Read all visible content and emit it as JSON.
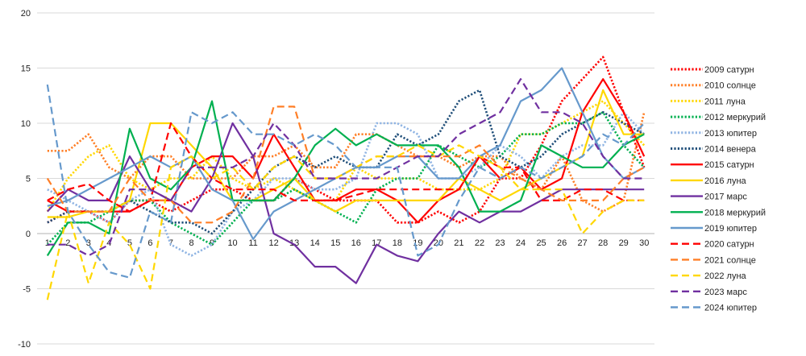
{
  "chart_data": {
    "type": "line",
    "title": "",
    "xlabel": "",
    "ylabel": "",
    "ylim": [
      -10,
      20
    ],
    "yticks": [
      -10,
      -5,
      0,
      5,
      10,
      15,
      20
    ],
    "x": [
      1,
      2,
      3,
      4,
      5,
      6,
      7,
      8,
      9,
      10,
      11,
      12,
      13,
      14,
      15,
      16,
      17,
      18,
      19,
      20,
      21,
      22,
      23,
      24,
      25,
      26,
      27,
      28,
      29,
      30
    ],
    "grid": "horizontal",
    "legend": "right",
    "series": [
      {
        "name": "2009 сатурн",
        "color": "#ff0000",
        "dash": "dot",
        "values": [
          1,
          2,
          2,
          1,
          3,
          3,
          2,
          3,
          4,
          4,
          3,
          3,
          5,
          4,
          3,
          3,
          3,
          1,
          1,
          2,
          1,
          2,
          5,
          5,
          8,
          12,
          14,
          16,
          11,
          6
        ]
      },
      {
        "name": "2010 солнце",
        "color": "#ff7f27",
        "dash": "dot",
        "values": [
          7.5,
          7.5,
          9,
          6,
          5,
          7,
          7,
          5,
          5,
          5,
          7,
          7,
          8,
          6,
          6,
          9,
          9,
          8,
          7,
          7,
          6,
          7,
          7,
          5,
          4,
          7,
          3,
          2,
          3,
          11
        ]
      },
      {
        "name": "2011 луна",
        "color": "#ffd700",
        "dash": "dot",
        "values": [
          2,
          5,
          7,
          8,
          5,
          4,
          5,
          5,
          7,
          5,
          4,
          5,
          4,
          3,
          3,
          6,
          5,
          5,
          5,
          4,
          4,
          4,
          5,
          9,
          9,
          10,
          11,
          12,
          10,
          8
        ]
      },
      {
        "name": "2012 меркурий",
        "color": "#00b050",
        "dash": "dot",
        "values": [
          -1,
          1,
          1,
          2,
          3,
          3,
          1,
          0,
          -1,
          1,
          3,
          3,
          4,
          3,
          2,
          1,
          4,
          5,
          5,
          8,
          7,
          6,
          7,
          9,
          9,
          10,
          10,
          11,
          8,
          6
        ]
      },
      {
        "name": "2013 юпитер",
        "color": "#8fb4e3",
        "dash": "dot",
        "values": [
          4,
          3,
          2,
          1,
          3,
          4,
          -1,
          -2,
          -1,
          2,
          3,
          5,
          5,
          4,
          4,
          5,
          10,
          10,
          9,
          5,
          5,
          6,
          8,
          7,
          5,
          7,
          8,
          8,
          11,
          9
        ]
      },
      {
        "name": "2014 венера",
        "color": "#1f4e79",
        "dash": "dot",
        "values": [
          1,
          2,
          2,
          2,
          3,
          2,
          1,
          1,
          0,
          2,
          4,
          6,
          7,
          6,
          7,
          6,
          6,
          9,
          8,
          9,
          12,
          13,
          7,
          6,
          7,
          9,
          10,
          11,
          10,
          9
        ]
      },
      {
        "name": "2015 сатурн",
        "color": "#ff0000",
        "dash": "solid",
        "values": [
          3,
          2,
          2,
          2,
          2,
          3,
          3,
          6,
          7,
          7,
          5,
          9,
          6,
          3,
          3,
          4,
          4,
          3,
          1,
          3,
          4,
          7,
          5,
          6,
          4,
          5,
          11,
          14,
          11,
          7
        ]
      },
      {
        "name": "2016 луна",
        "color": "#ffd700",
        "dash": "solid",
        "values": [
          1.5,
          1.5,
          2,
          2,
          3,
          10,
          10,
          8,
          6,
          3,
          3,
          4,
          5,
          3,
          2,
          3,
          3,
          3,
          3,
          3,
          5,
          4,
          3,
          4,
          5,
          6,
          7,
          13,
          9,
          9
        ]
      },
      {
        "name": "2017 марс",
        "color": "#7030a0",
        "dash": "solid",
        "values": [
          2,
          4,
          3,
          3,
          7,
          4,
          3,
          2,
          5,
          10,
          7,
          0,
          -1,
          -3,
          -3,
          -4.5,
          -1,
          -2,
          -2.5,
          0,
          2,
          1,
          2,
          2,
          3,
          4,
          4,
          4,
          4,
          4
        ]
      },
      {
        "name": "2018 меркурий",
        "color": "#00b050",
        "dash": "solid",
        "values": [
          -2,
          1,
          1,
          0,
          9.5,
          5,
          4,
          6,
          12,
          3,
          3,
          3,
          5,
          8,
          9.5,
          8,
          9,
          8,
          8,
          8,
          6,
          2,
          2,
          3,
          8,
          7,
          6,
          6,
          8,
          9
        ]
      },
      {
        "name": "2019 юпитер",
        "color": "#6699cc",
        "dash": "solid",
        "values": [
          2.5,
          3,
          4,
          5,
          6,
          7,
          6,
          7,
          4,
          3,
          -0.5,
          2,
          3,
          4,
          5,
          6,
          6,
          7,
          7,
          5,
          5,
          7,
          8,
          12,
          13,
          15,
          11,
          7,
          5,
          6
        ]
      },
      {
        "name": "2020 сатурн",
        "color": "#ff0000",
        "dash": "dash",
        "values": [
          3,
          4,
          4.5,
          3,
          2,
          3,
          10,
          7,
          5,
          4,
          4,
          4,
          3,
          3,
          3,
          3.5,
          4,
          4,
          4,
          4,
          4,
          7,
          6,
          6,
          3,
          3,
          4,
          4,
          3,
          3
        ]
      },
      {
        "name": "2021 солнце",
        "color": "#ff7f27",
        "dash": "dash",
        "values": [
          5,
          2,
          2,
          2,
          5,
          3,
          3,
          1,
          1,
          2,
          5,
          11.5,
          11.5,
          5,
          5,
          6,
          7,
          7,
          7,
          7,
          7,
          8,
          6,
          5,
          4,
          3,
          3,
          3,
          5,
          6
        ]
      },
      {
        "name": "2022 луна",
        "color": "#ffd700",
        "dash": "dash",
        "values": [
          -6,
          2,
          -4.5,
          1,
          -1,
          -5,
          6,
          7,
          5,
          6,
          4,
          6,
          7,
          5,
          5,
          6,
          7,
          7,
          8,
          7,
          8,
          7,
          6,
          4,
          4,
          4,
          0,
          2,
          3,
          3
        ]
      },
      {
        "name": "2023 марс",
        "color": "#7030a0",
        "dash": "dash",
        "values": [
          -1,
          -1,
          -2,
          -1,
          4,
          4,
          3,
          6,
          6,
          6,
          7,
          10,
          8,
          5,
          5,
          5,
          5,
          6,
          7,
          7,
          9,
          10,
          11,
          14,
          11,
          11,
          10,
          7,
          5,
          5
        ]
      },
      {
        "name": "2024 юпитер",
        "color": "#6699cc",
        "dash": "dash",
        "values": [
          13.5,
          2,
          -1,
          -3.5,
          -4,
          2,
          1,
          11,
          10,
          11,
          9,
          9,
          8,
          9,
          8,
          6,
          6,
          6,
          -2,
          -1,
          3,
          6,
          5,
          6,
          5,
          6,
          7,
          9,
          8,
          10
        ]
      }
    ]
  }
}
